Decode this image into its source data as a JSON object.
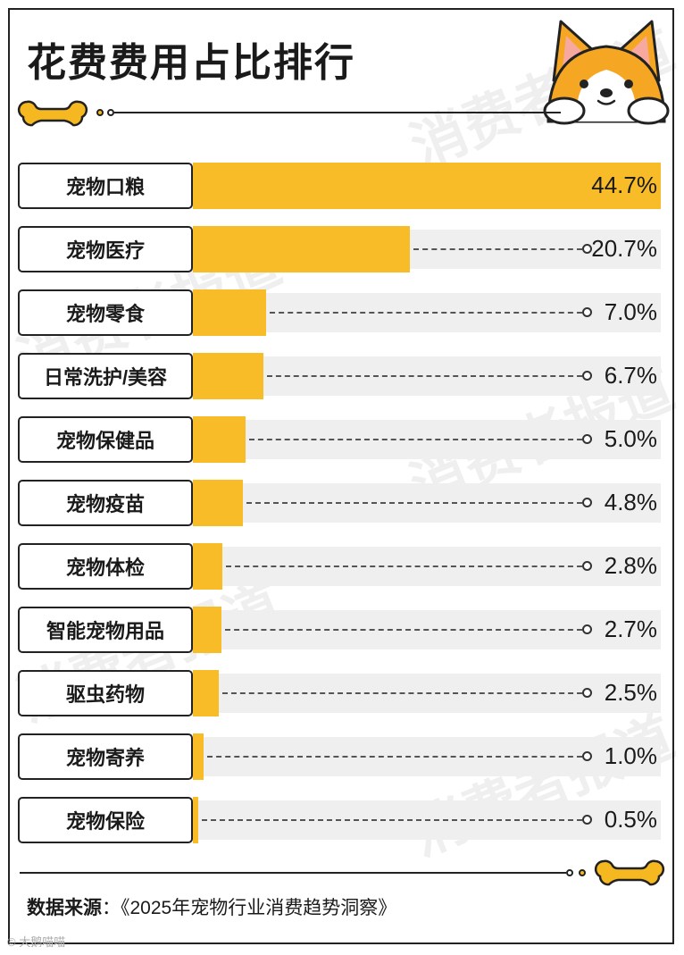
{
  "title": "花费费用占比排行",
  "source": {
    "label": "数据来源",
    "separator": "：",
    "text": "《2025年宠物行业消费趋势洞察》"
  },
  "watermark": "消费者报道",
  "footer_mark": "© 大鹅喵喵",
  "colors": {
    "bar": "#f7bc28",
    "track": "#efefef",
    "border": "#222222"
  },
  "chart_data": {
    "type": "bar",
    "orientation": "horizontal",
    "title": "花费费用占比排行",
    "categories": [
      "宠物口粮",
      "宠物医疗",
      "宠物零食",
      "日常洗护/美容",
      "宠物保健品",
      "宠物疫苗",
      "宠物体检",
      "智能宠物用品",
      "驱虫药物",
      "宠物寄养",
      "宠物保险"
    ],
    "values": [
      44.7,
      20.7,
      7.0,
      6.7,
      5.0,
      4.8,
      2.8,
      2.7,
      2.5,
      1.0,
      0.5
    ],
    "value_labels": [
      "44.7%",
      "20.7%",
      "7.0%",
      "6.7%",
      "5.0%",
      "4.8%",
      "2.8%",
      "2.7%",
      "2.5%",
      "1.0%",
      "0.5%"
    ],
    "unit": "%",
    "xlim": [
      0,
      44.7
    ],
    "grid": false,
    "legend": "none"
  }
}
